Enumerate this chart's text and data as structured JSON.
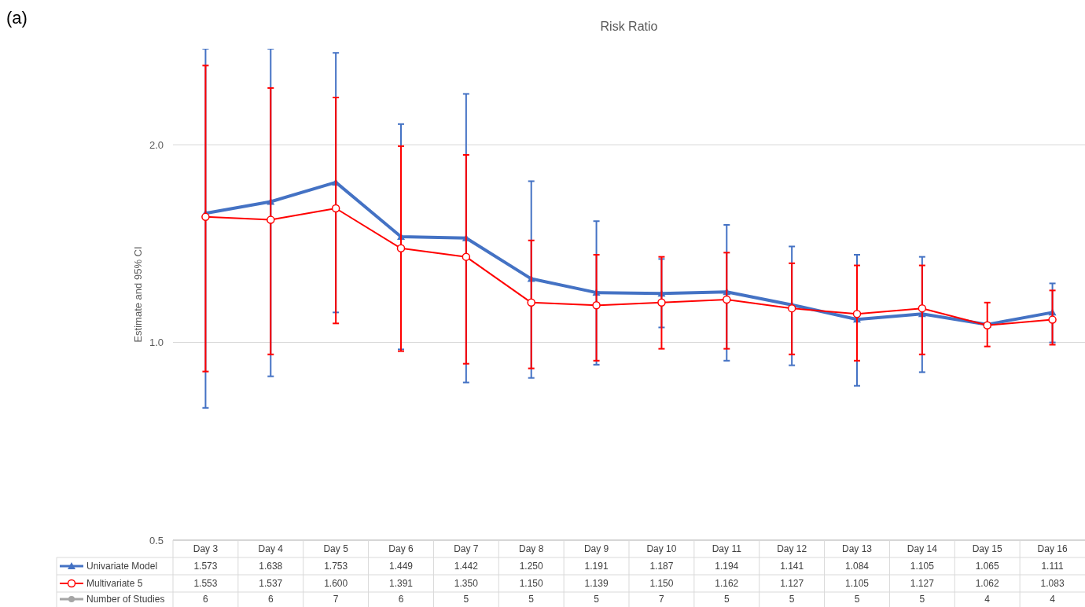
{
  "chart_data": {
    "type": "line",
    "title": "Risk Ratio",
    "ylabel": "Estimate and 95% CI",
    "log": true,
    "ylim": [
      0.5,
      2.8
    ],
    "yticks": [
      {
        "value": 0.5,
        "label": "0.5"
      },
      {
        "value": 1,
        "label": "1.0"
      },
      {
        "value": 2,
        "label": "2.0"
      }
    ],
    "grid": "y",
    "legend": "bottom",
    "categories": [
      "Day 3",
      "Day 4",
      "Day 5",
      "Day 6",
      "Day 7",
      "Day 8",
      "Day 9",
      "Day 10",
      "Day 11",
      "Day 12",
      "Day 13",
      "Day 14",
      "Day 15",
      "Day 16"
    ],
    "series": [
      {
        "name": "Univariate Model",
        "color": "#4472c4",
        "marker": "triangle",
        "values": [
          1.573,
          1.638,
          1.753,
          1.449,
          1.442,
          1.25,
          1.191,
          1.187,
          1.194,
          1.141,
          1.084,
          1.105,
          1.065,
          1.111
        ],
        "errors": [
          [
            0.795,
            2.8
          ],
          [
            0.888,
            2.8
          ],
          [
            1.111,
            2.76
          ],
          [
            0.976,
            2.15
          ],
          [
            0.869,
            2.39
          ],
          [
            0.883,
            1.76
          ],
          [
            0.925,
            1.53
          ],
          [
            1.054,
            1.34
          ],
          [
            0.938,
            1.51
          ],
          [
            0.923,
            1.4
          ],
          [
            0.859,
            1.36
          ],
          [
            0.901,
            1.35
          ],
          null,
          [
            1.0,
            1.23
          ]
        ],
        "value_labels": [
          "1.573",
          "1.638",
          "1.753",
          "1.449",
          "1.442",
          "1.250",
          "1.191",
          "1.187",
          "1.194",
          "1.141",
          "1.084",
          "1.105",
          "1.065",
          "1.111"
        ]
      },
      {
        "name": "Multivariate 5",
        "color": "#ff0000",
        "marker": "circle",
        "values": [
          1.553,
          1.537,
          1.6,
          1.391,
          1.35,
          1.15,
          1.139,
          1.15,
          1.162,
          1.127,
          1.105,
          1.127,
          1.062,
          1.083
        ],
        "errors": [
          [
            0.903,
            2.64
          ],
          [
            0.959,
            2.44
          ],
          [
            1.069,
            2.36
          ],
          [
            0.97,
            1.99
          ],
          [
            0.928,
            1.93
          ],
          [
            0.913,
            1.43
          ],
          [
            0.938,
            1.36
          ],
          [
            0.978,
            1.35
          ],
          [
            0.978,
            1.37
          ],
          [
            0.959,
            1.32
          ],
          [
            0.938,
            1.31
          ],
          [
            0.959,
            1.31
          ],
          [
            0.986,
            1.15
          ],
          [
            0.992,
            1.2
          ]
        ],
        "value_labels": [
          "1.553",
          "1.537",
          "1.600",
          "1.391",
          "1.350",
          "1.150",
          "1.139",
          "1.150",
          "1.162",
          "1.127",
          "1.105",
          "1.127",
          "1.062",
          "1.083"
        ]
      }
    ],
    "annotations": [
      "(a)",
      "Number of Studies",
      "6",
      "6",
      "7",
      "6",
      "5",
      "5",
      "5",
      "7",
      "5",
      "5",
      "5",
      "5",
      "4",
      "4"
    ]
  }
}
